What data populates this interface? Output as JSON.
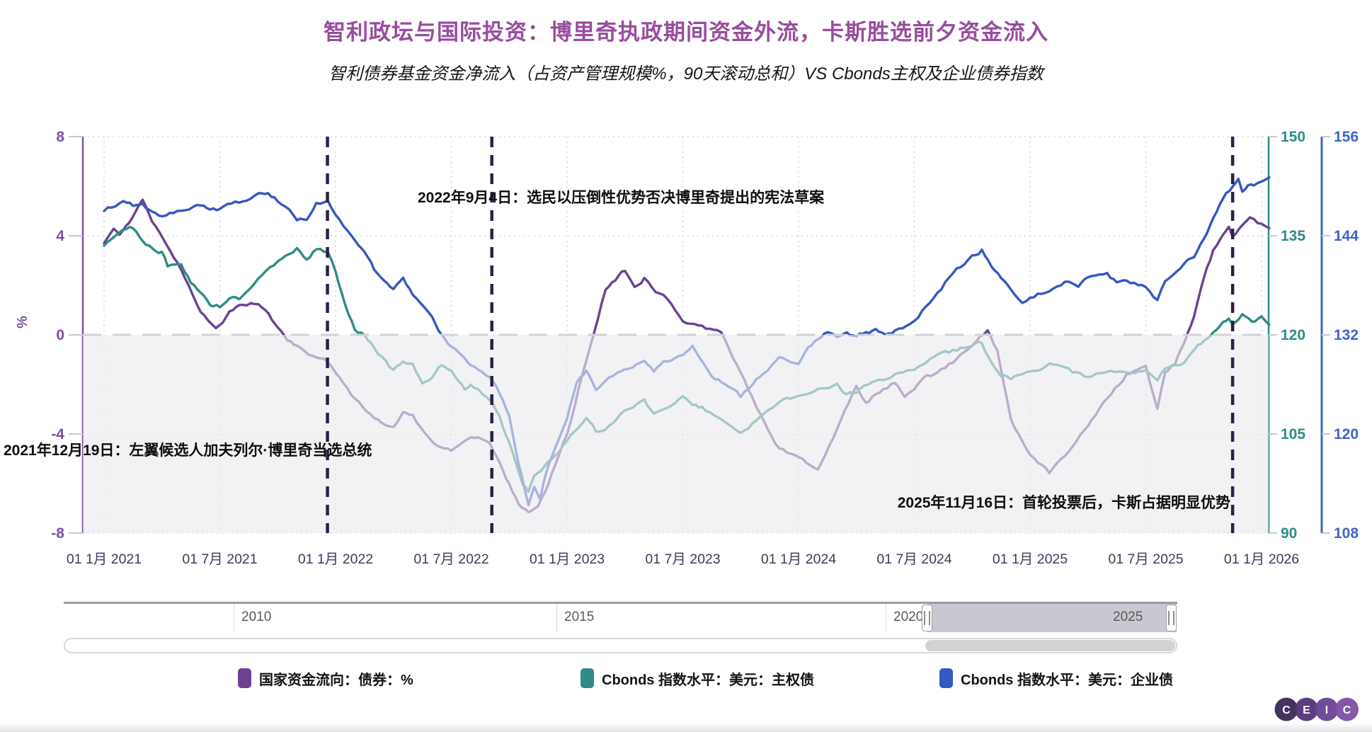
{
  "header": {
    "title": "智利政坛与国际投资：博里奇执政期间资金外流，卡斯胜选前夕资金流入",
    "subtitle": "智利债券基金资金净流入（占资产管理规模%，90天滚动总和）VS Cbonds主权及企业债券指数"
  },
  "chart_data": {
    "type": "line",
    "grid": "dotted",
    "legend_position": "bottom",
    "negative_region_shaded": true,
    "x_unit": "months since 2021-01-01",
    "x_ticks": {
      "months": [
        0,
        6,
        12,
        18,
        24,
        30,
        36,
        42,
        48,
        54,
        60
      ],
      "labels": [
        "01 1月 2021",
        "01 7月 2021",
        "01 1月 2022",
        "01 7月 2022",
        "01 1月 2023",
        "01 7月 2023",
        "01 1月 2024",
        "01 7月 2024",
        "01 1月 2025",
        "01 7月 2025",
        "01 1月 2026"
      ],
      "label_color": "#3E3A5C"
    },
    "axes": {
      "left": {
        "title": "%",
        "ticks": [
          8,
          4,
          0,
          -4,
          -8
        ],
        "range": [
          -8,
          8
        ],
        "color": "#7C51A1"
      },
      "right_sov": {
        "title": "",
        "ticks": [
          150,
          135,
          120,
          105,
          90
        ],
        "range": [
          90,
          150
        ],
        "color": "#2F8C86"
      },
      "right_corp": {
        "title": "",
        "ticks": [
          156,
          144,
          132,
          120,
          108
        ],
        "range": [
          108,
          156
        ],
        "color": "#3F63C8"
      }
    },
    "events": [
      {
        "m": 11.58,
        "date": "2021-12-19",
        "label": "2021年12月19日：左翼候选人加夫列尔·博里奇当选总统"
      },
      {
        "m": 20.1,
        "date": "2022-09-04",
        "label": "2022年9月4日：选民以压倒性优势否决博里奇提出的宪法草案"
      },
      {
        "m": 58.5,
        "date": "2025-11-16",
        "label": "2025年11月16日：首轮投票后，卡斯占据明显优势"
      }
    ],
    "series": [
      {
        "name": "国家资金流向：债券：%",
        "axis": "left",
        "color": "#6B4292",
        "points": [
          [
            0,
            3.7
          ],
          [
            0.5,
            4.3
          ],
          [
            0.8,
            4.1
          ],
          [
            1.3,
            4.5
          ],
          [
            2,
            5.5
          ],
          [
            2.5,
            4.6
          ],
          [
            3,
            3.9
          ],
          [
            4,
            2.6
          ],
          [
            5,
            1.0
          ],
          [
            5.8,
            0.2
          ],
          [
            6.5,
            0.9
          ],
          [
            7,
            1.2
          ],
          [
            8,
            1.3
          ],
          [
            8.7,
            0.6
          ],
          [
            9,
            0.3
          ],
          [
            9.5,
            -0.2
          ],
          [
            10,
            -0.5
          ],
          [
            11,
            -0.9
          ],
          [
            11.6,
            -1.1
          ],
          [
            12,
            -1.5
          ],
          [
            13,
            -2.6
          ],
          [
            14,
            -3.4
          ],
          [
            15,
            -3.7
          ],
          [
            15.5,
            -3.1
          ],
          [
            16,
            -3.3
          ],
          [
            17,
            -4.4
          ],
          [
            18,
            -4.7
          ],
          [
            18.5,
            -4.3
          ],
          [
            19,
            -4.1
          ],
          [
            20,
            -4.3
          ],
          [
            20.5,
            -5.2
          ],
          [
            21,
            -6.0
          ],
          [
            21.5,
            -6.8
          ],
          [
            22,
            -7.2
          ],
          [
            22.5,
            -6.9
          ],
          [
            23,
            -6.1
          ],
          [
            24,
            -4.0
          ],
          [
            25,
            -1.0
          ],
          [
            26,
            1.8
          ],
          [
            26.5,
            2.2
          ],
          [
            27,
            2.6
          ],
          [
            27.5,
            2.0
          ],
          [
            28,
            2.3
          ],
          [
            28.6,
            1.7
          ],
          [
            29,
            1.6
          ],
          [
            30,
            0.5
          ],
          [
            31,
            0.35
          ],
          [
            32,
            0.1
          ],
          [
            33,
            -1.6
          ],
          [
            34,
            -3.2
          ],
          [
            35,
            -4.6
          ],
          [
            36,
            -5.0
          ],
          [
            37,
            -5.4
          ],
          [
            38,
            -3.8
          ],
          [
            39,
            -2.1
          ],
          [
            39.5,
            -2.7
          ],
          [
            40,
            -2.4
          ],
          [
            41,
            -1.9
          ],
          [
            41.5,
            -2.4
          ],
          [
            42,
            -2.2
          ],
          [
            42.5,
            -1.8
          ],
          [
            43,
            -1.6
          ],
          [
            44,
            -1.1
          ],
          [
            45,
            -0.5
          ],
          [
            45.8,
            0.2
          ],
          [
            46.3,
            -0.6
          ],
          [
            47,
            -3.4
          ],
          [
            48,
            -4.9
          ],
          [
            49,
            -5.6
          ],
          [
            50,
            -4.7
          ],
          [
            51,
            -3.6
          ],
          [
            52,
            -2.6
          ],
          [
            53,
            -1.6
          ],
          [
            54,
            -1.2
          ],
          [
            54.6,
            -3.0
          ],
          [
            55,
            -1.5
          ],
          [
            55.5,
            -1.2
          ],
          [
            56,
            -0.3
          ],
          [
            56.5,
            0.8
          ],
          [
            57,
            2.2
          ],
          [
            57.5,
            3.4
          ],
          [
            58,
            4.0
          ],
          [
            58.3,
            4.4
          ],
          [
            58.5,
            4.0
          ],
          [
            59,
            4.5
          ],
          [
            59.4,
            4.75
          ],
          [
            60,
            4.45
          ],
          [
            60.4,
            4.3
          ]
        ]
      },
      {
        "name": "Cbonds 指数水平：美元：主权债",
        "axis": "right_sov",
        "color": "#2F8C85",
        "points": [
          [
            0,
            133.5
          ],
          [
            0.7,
            135.5
          ],
          [
            1,
            135.8
          ],
          [
            1.5,
            136.2
          ],
          [
            2,
            134.5
          ],
          [
            2.5,
            133.0
          ],
          [
            3,
            132.5
          ],
          [
            3.3,
            130.5
          ],
          [
            4,
            130.5
          ],
          [
            4.5,
            128.0
          ],
          [
            5,
            126.5
          ],
          [
            5.5,
            124.5
          ],
          [
            6,
            124.3
          ],
          [
            6.5,
            125.8
          ],
          [
            7,
            125.5
          ],
          [
            8,
            128.5
          ],
          [
            9,
            131.0
          ],
          [
            10,
            133.2
          ],
          [
            10.5,
            131.5
          ],
          [
            11,
            133.0
          ],
          [
            11.6,
            132.6
          ],
          [
            12,
            129.5
          ],
          [
            12.5,
            124.5
          ],
          [
            13,
            121.0
          ],
          [
            13.5,
            120.0
          ],
          [
            14,
            118.0
          ],
          [
            15,
            114.5
          ],
          [
            15.5,
            116.0
          ],
          [
            16,
            115.5
          ],
          [
            16.5,
            113.0
          ],
          [
            17,
            113.5
          ],
          [
            17.5,
            115.5
          ],
          [
            18,
            114.5
          ],
          [
            18.7,
            112.0
          ],
          [
            19,
            112.5
          ],
          [
            20,
            110.2
          ],
          [
            20.5,
            107.5
          ],
          [
            21,
            103.5
          ],
          [
            21.7,
            97.5
          ],
          [
            22,
            96.5
          ],
          [
            22.3,
            98.5
          ],
          [
            23,
            100.5
          ],
          [
            24,
            104.0
          ],
          [
            25,
            107.5
          ],
          [
            25.5,
            105.5
          ],
          [
            26,
            106.0
          ],
          [
            27,
            108.5
          ],
          [
            28,
            110.0
          ],
          [
            28.5,
            108.0
          ],
          [
            29,
            108.5
          ],
          [
            30,
            110.5
          ],
          [
            30.5,
            109.5
          ],
          [
            31,
            109.0
          ],
          [
            32,
            107.0
          ],
          [
            33,
            105.0
          ],
          [
            34,
            107.5
          ],
          [
            35,
            110.0
          ],
          [
            36,
            110.5
          ],
          [
            37,
            111.5
          ],
          [
            38,
            112.5
          ],
          [
            38.5,
            111.0
          ],
          [
            39,
            111.5
          ],
          [
            40,
            113.0
          ],
          [
            41,
            114.0
          ],
          [
            42,
            115.0
          ],
          [
            43,
            116.5
          ],
          [
            44,
            117.5
          ],
          [
            45,
            118.5
          ],
          [
            45.5,
            118.8
          ],
          [
            46,
            115.5
          ],
          [
            46.5,
            114.0
          ],
          [
            47,
            113.5
          ],
          [
            48,
            114.5
          ],
          [
            49,
            115.5
          ],
          [
            50,
            114.5
          ],
          [
            51,
            113.5
          ],
          [
            52,
            114.5
          ],
          [
            53,
            114.0
          ],
          [
            54,
            114.5
          ],
          [
            54.6,
            113.0
          ],
          [
            55,
            115.0
          ],
          [
            56,
            116.0
          ],
          [
            56.7,
            118.5
          ],
          [
            57,
            119.0
          ],
          [
            57.5,
            120.5
          ],
          [
            58,
            121.8
          ],
          [
            58.3,
            122.5
          ],
          [
            58.5,
            121.5
          ],
          [
            59,
            123.3
          ],
          [
            59.5,
            122.0
          ],
          [
            60,
            122.5
          ],
          [
            60.4,
            121.8
          ]
        ]
      },
      {
        "name": "Cbonds 指数水平：美元：企业债",
        "axis": "right_corp",
        "color": "#3558C0",
        "points": [
          [
            0,
            147.0
          ],
          [
            1,
            148.2
          ],
          [
            1.5,
            147.6
          ],
          [
            2,
            148.0
          ],
          [
            2.5,
            146.8
          ],
          [
            3,
            146.5
          ],
          [
            4,
            147.2
          ],
          [
            5,
            147.8
          ],
          [
            5.5,
            147.0
          ],
          [
            6,
            147.2
          ],
          [
            7,
            148.0
          ],
          [
            8,
            149.0
          ],
          [
            8.5,
            149.2
          ],
          [
            9,
            148.2
          ],
          [
            10,
            146.0
          ],
          [
            10.5,
            145.8
          ],
          [
            11,
            147.8
          ],
          [
            11.6,
            148.0
          ],
          [
            12,
            146.5
          ],
          [
            13,
            143.5
          ],
          [
            13.5,
            142.0
          ],
          [
            14,
            140.0
          ],
          [
            14.5,
            138.5
          ],
          [
            15,
            137.7
          ],
          [
            15.5,
            138.8
          ],
          [
            16,
            137.0
          ],
          [
            17,
            134.0
          ],
          [
            17.5,
            132.0
          ],
          [
            18,
            130.5
          ],
          [
            18.5,
            129.5
          ],
          [
            19,
            128.0
          ],
          [
            20,
            127.0
          ],
          [
            20.5,
            125.0
          ],
          [
            21,
            122.0
          ],
          [
            21.5,
            116.5
          ],
          [
            22,
            111.5
          ],
          [
            22.3,
            113.5
          ],
          [
            22.6,
            112.0
          ],
          [
            23,
            116.0
          ],
          [
            24,
            122.0
          ],
          [
            24.5,
            126.0
          ],
          [
            25,
            127.5
          ],
          [
            25.5,
            125.5
          ],
          [
            26,
            126.5
          ],
          [
            27,
            128.0
          ],
          [
            28,
            129.0
          ],
          [
            28.5,
            127.5
          ],
          [
            29,
            128.5
          ],
          [
            30,
            129.5
          ],
          [
            30.5,
            130.5
          ],
          [
            31,
            128.5
          ],
          [
            31.5,
            127.0
          ],
          [
            32,
            126.5
          ],
          [
            33,
            124.5
          ],
          [
            34,
            127.0
          ],
          [
            35,
            129.0
          ],
          [
            36,
            128.5
          ],
          [
            36.5,
            130.5
          ],
          [
            37,
            131.5
          ],
          [
            37.5,
            132.3
          ],
          [
            38,
            131.8
          ],
          [
            38.5,
            132.5
          ],
          [
            39,
            131.8
          ],
          [
            39.5,
            132.3
          ],
          [
            40,
            132.5
          ],
          [
            40.5,
            131.8
          ],
          [
            41,
            132.5
          ],
          [
            42,
            133.5
          ],
          [
            43,
            136.5
          ],
          [
            44,
            139.5
          ],
          [
            45,
            141.5
          ],
          [
            45.5,
            142.3
          ],
          [
            46,
            140.5
          ],
          [
            46.5,
            139.0
          ],
          [
            47,
            137.5
          ],
          [
            47.6,
            135.8
          ],
          [
            48,
            136.3
          ],
          [
            49,
            137.5
          ],
          [
            50,
            138.5
          ],
          [
            50.5,
            137.8
          ],
          [
            51,
            138.8
          ],
          [
            52,
            139.2
          ],
          [
            52.5,
            138.3
          ],
          [
            53,
            138.6
          ],
          [
            54,
            138.0
          ],
          [
            54.6,
            136.3
          ],
          [
            55,
            138.5
          ],
          [
            56,
            140.5
          ],
          [
            56.5,
            141.5
          ],
          [
            57,
            143.5
          ],
          [
            57.5,
            146.0
          ],
          [
            58,
            148.5
          ],
          [
            58.5,
            150.0
          ],
          [
            58.8,
            151.1
          ],
          [
            59,
            149.4
          ],
          [
            59.3,
            150.3
          ],
          [
            59.6,
            150.0
          ],
          [
            60,
            150.5
          ],
          [
            60.4,
            150.9
          ]
        ]
      }
    ]
  },
  "navigator": {
    "years": [
      "2010",
      "2015",
      "2020",
      "2025"
    ]
  },
  "logo": {
    "letters": [
      "C",
      "E",
      "I",
      "C"
    ],
    "colors": [
      "#3B2B5C",
      "#54357B",
      "#6B4597",
      "#7E51A6"
    ]
  }
}
